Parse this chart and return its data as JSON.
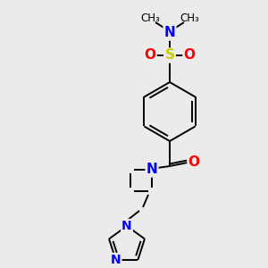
{
  "bg_color": "#ebebeb",
  "atom_colors": {
    "C": "#000000",
    "N": "#0000ff",
    "O": "#ff0000",
    "S": "#cccc00",
    "H": "#000000"
  },
  "bond_color": "#000000",
  "figsize": [
    3.0,
    3.0
  ],
  "dpi": 100,
  "lw": 1.4,
  "font_size_atom": 10,
  "font_size_me": 8.5
}
